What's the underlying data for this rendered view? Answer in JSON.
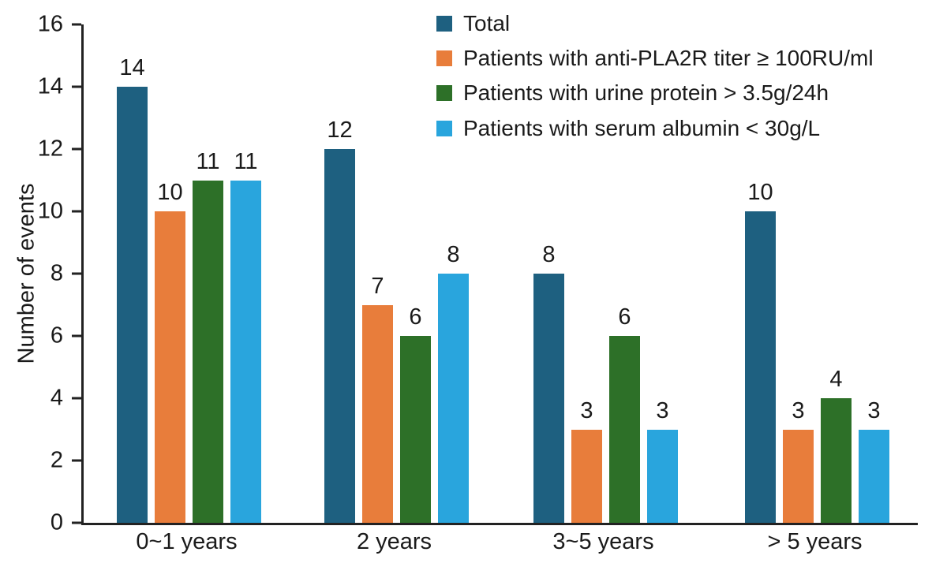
{
  "chart_data": {
    "type": "bar",
    "title": "",
    "xlabel": "",
    "ylabel": "Number of events",
    "ylim": [
      0,
      16
    ],
    "yticks": [
      0,
      2,
      4,
      6,
      8,
      10,
      12,
      14,
      16
    ],
    "categories": [
      "0~1 years",
      "2 years",
      "3~5 years",
      "> 5 years"
    ],
    "series": [
      {
        "name": "Total",
        "color": "#1e6080",
        "values": [
          14,
          12,
          8,
          10
        ]
      },
      {
        "name": "Patients with anti-PLA2R titer ≥ 100RU/ml",
        "color": "#e87d3b",
        "values": [
          10,
          7,
          3,
          3
        ]
      },
      {
        "name": "Patients with urine protein > 3.5g/24h",
        "color": "#2d7028",
        "values": [
          11,
          6,
          6,
          4
        ]
      },
      {
        "name": "Patients with serum albumin < 30g/L",
        "color": "#29a5dd",
        "values": [
          11,
          8,
          3,
          3
        ]
      }
    ],
    "legend_position": "top-right",
    "grid": false,
    "bar_value_labels": true,
    "axis_color": "#222222",
    "text_color": "#1a1a1a"
  }
}
